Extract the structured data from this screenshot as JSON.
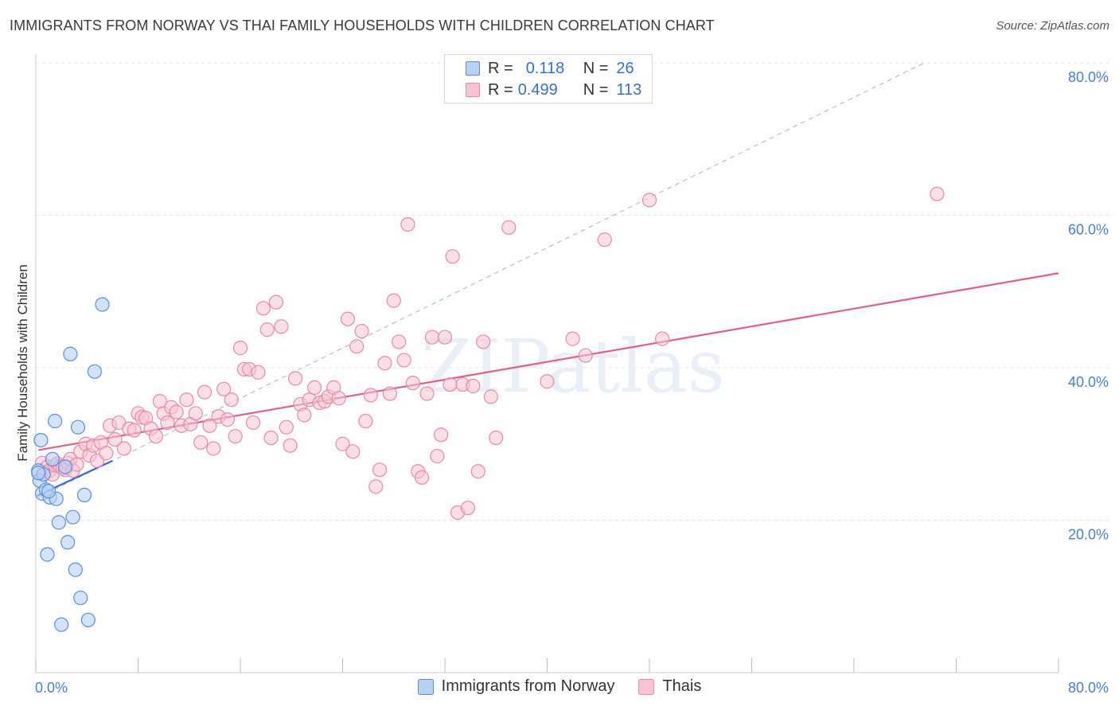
{
  "header": {
    "title": "IMMIGRANTS FROM NORWAY VS THAI FAMILY HOUSEHOLDS WITH CHILDREN CORRELATION CHART",
    "source": "Source: ZipAtlas.com"
  },
  "watermark": "ZIPatlas",
  "legend": {
    "rows": [
      {
        "r_label": "R =",
        "r_value": "0.118",
        "n_label": "N =",
        "n_value": "26"
      },
      {
        "r_label": "R =",
        "r_value": "0.499",
        "n_label": "N =",
        "n_value": "113"
      }
    ]
  },
  "bottom_legend": {
    "norway": "Immigrants from Norway",
    "thais": "Thais"
  },
  "colors": {
    "norway_fill": "#b8d0f5",
    "norway_stroke": "#5b8fd8",
    "norway_line": "#2a6cd0",
    "thai_fill": "#f8c4d4",
    "thai_stroke": "#e88aa8",
    "thai_line": "#e0608a",
    "tick_text": "#4a7fd0",
    "grid": "#e3e3e3"
  },
  "chart_data": {
    "type": "scatter",
    "title": "IMMIGRANTS FROM NORWAY VS THAI FAMILY HOUSEHOLDS WITH CHILDREN CORRELATION CHART",
    "xlabel": "",
    "ylabel": "Family Households with Children",
    "xlim": [
      0,
      80
    ],
    "ylim": [
      0,
      80
    ],
    "x_tick_labels": [
      "0.0%",
      "80.0%"
    ],
    "y_ticks": [
      20,
      40,
      60,
      80
    ],
    "y_tick_labels": [
      "20.0%",
      "40.0%",
      "60.0%",
      "80.0%"
    ],
    "series": [
      {
        "name": "Immigrants from Norway",
        "R": 0.118,
        "N": 26,
        "trend": {
          "x0": 0.1,
          "y0": 23.2,
          "x1": 6.0,
          "y1": 27.8
        },
        "points": [
          [
            0.2,
            26.5
          ],
          [
            0.3,
            25.2
          ],
          [
            0.4,
            30.5
          ],
          [
            0.5,
            23.5
          ],
          [
            0.6,
            26.0
          ],
          [
            0.8,
            24.0
          ],
          [
            0.9,
            15.5
          ],
          [
            1.1,
            23.0
          ],
          [
            1.3,
            28.0
          ],
          [
            1.5,
            33.0
          ],
          [
            1.6,
            22.8
          ],
          [
            1.8,
            19.7
          ],
          [
            2.0,
            6.3
          ],
          [
            2.3,
            27.0
          ],
          [
            2.5,
            17.1
          ],
          [
            2.7,
            41.8
          ],
          [
            2.9,
            20.4
          ],
          [
            3.1,
            13.5
          ],
          [
            3.3,
            32.2
          ],
          [
            3.5,
            9.8
          ],
          [
            3.8,
            23.3
          ],
          [
            4.1,
            6.9
          ],
          [
            4.6,
            39.5
          ],
          [
            5.2,
            48.3
          ],
          [
            0.2,
            26.2
          ],
          [
            1.0,
            23.8
          ]
        ]
      },
      {
        "name": "Thais",
        "R": 0.499,
        "N": 113,
        "trend": {
          "x0": 0.2,
          "y0": 29.2,
          "x1": 80.0,
          "y1": 52.4
        },
        "dashed_extension": {
          "x0": 0.2,
          "y0": 23.0,
          "x1": 69.5,
          "y1": 80.0
        },
        "points": [
          [
            0.5,
            27.5
          ],
          [
            0.7,
            26.2
          ],
          [
            0.9,
            27.0
          ],
          [
            1.1,
            26.5
          ],
          [
            1.3,
            26.0
          ],
          [
            1.5,
            27.2
          ],
          [
            1.7,
            27.4
          ],
          [
            1.9,
            27.0
          ],
          [
            2.1,
            26.8
          ],
          [
            2.3,
            26.6
          ],
          [
            2.5,
            27.5
          ],
          [
            2.7,
            28.0
          ],
          [
            2.9,
            26.5
          ],
          [
            3.2,
            27.3
          ],
          [
            3.5,
            29.0
          ],
          [
            3.9,
            30.0
          ],
          [
            4.2,
            28.5
          ],
          [
            4.5,
            29.8
          ],
          [
            4.8,
            27.8
          ],
          [
            5.1,
            30.2
          ],
          [
            5.5,
            28.8
          ],
          [
            5.8,
            32.4
          ],
          [
            6.2,
            30.6
          ],
          [
            6.5,
            32.8
          ],
          [
            6.9,
            29.4
          ],
          [
            7.3,
            32.0
          ],
          [
            7.7,
            31.8
          ],
          [
            8.0,
            34.0
          ],
          [
            8.3,
            33.5
          ],
          [
            8.6,
            33.4
          ],
          [
            9.0,
            32.0
          ],
          [
            9.4,
            31.0
          ],
          [
            9.7,
            35.6
          ],
          [
            10.0,
            34.0
          ],
          [
            10.3,
            32.8
          ],
          [
            10.6,
            34.8
          ],
          [
            11.0,
            34.2
          ],
          [
            11.4,
            32.4
          ],
          [
            11.8,
            35.8
          ],
          [
            12.1,
            32.6
          ],
          [
            12.5,
            34.0
          ],
          [
            12.9,
            30.2
          ],
          [
            13.2,
            36.8
          ],
          [
            13.6,
            32.4
          ],
          [
            13.9,
            29.4
          ],
          [
            14.3,
            33.6
          ],
          [
            14.7,
            37.2
          ],
          [
            15.0,
            33.2
          ],
          [
            15.3,
            35.8
          ],
          [
            15.6,
            31.0
          ],
          [
            16.0,
            42.6
          ],
          [
            16.3,
            39.8
          ],
          [
            16.7,
            39.8
          ],
          [
            17.0,
            32.8
          ],
          [
            17.4,
            39.4
          ],
          [
            17.8,
            47.8
          ],
          [
            18.1,
            45.0
          ],
          [
            18.4,
            30.8
          ],
          [
            18.8,
            48.6
          ],
          [
            19.2,
            45.4
          ],
          [
            19.6,
            32.2
          ],
          [
            19.9,
            29.8
          ],
          [
            20.3,
            38.6
          ],
          [
            20.7,
            35.2
          ],
          [
            21.0,
            33.8
          ],
          [
            21.4,
            35.8
          ],
          [
            21.8,
            37.4
          ],
          [
            22.2,
            35.4
          ],
          [
            22.6,
            35.6
          ],
          [
            22.9,
            36.2
          ],
          [
            23.3,
            37.4
          ],
          [
            23.7,
            36.0
          ],
          [
            24.0,
            30.0
          ],
          [
            24.4,
            46.4
          ],
          [
            24.8,
            29.0
          ],
          [
            25.1,
            42.8
          ],
          [
            25.5,
            44.8
          ],
          [
            25.8,
            33.0
          ],
          [
            26.2,
            36.4
          ],
          [
            26.6,
            24.4
          ],
          [
            26.9,
            26.6
          ],
          [
            27.3,
            40.6
          ],
          [
            27.7,
            36.6
          ],
          [
            28.0,
            48.8
          ],
          [
            28.4,
            43.4
          ],
          [
            28.8,
            41.0
          ],
          [
            29.1,
            58.8
          ],
          [
            29.5,
            38.0
          ],
          [
            29.9,
            26.4
          ],
          [
            30.2,
            25.6
          ],
          [
            30.6,
            36.6
          ],
          [
            31.0,
            44.0
          ],
          [
            31.4,
            28.4
          ],
          [
            31.7,
            31.2
          ],
          [
            32.0,
            44.0
          ],
          [
            32.4,
            37.8
          ],
          [
            32.6,
            54.6
          ],
          [
            33.0,
            21.0
          ],
          [
            33.4,
            37.8
          ],
          [
            33.8,
            21.6
          ],
          [
            34.2,
            37.6
          ],
          [
            34.6,
            26.4
          ],
          [
            35.0,
            43.4
          ],
          [
            35.6,
            36.2
          ],
          [
            36.0,
            30.8
          ],
          [
            37.0,
            58.4
          ],
          [
            40.0,
            38.2
          ],
          [
            42.0,
            43.8
          ],
          [
            43.0,
            41.6
          ],
          [
            44.5,
            56.8
          ],
          [
            48.0,
            62.0
          ],
          [
            49.0,
            43.8
          ],
          [
            70.5,
            62.8
          ]
        ]
      }
    ]
  }
}
